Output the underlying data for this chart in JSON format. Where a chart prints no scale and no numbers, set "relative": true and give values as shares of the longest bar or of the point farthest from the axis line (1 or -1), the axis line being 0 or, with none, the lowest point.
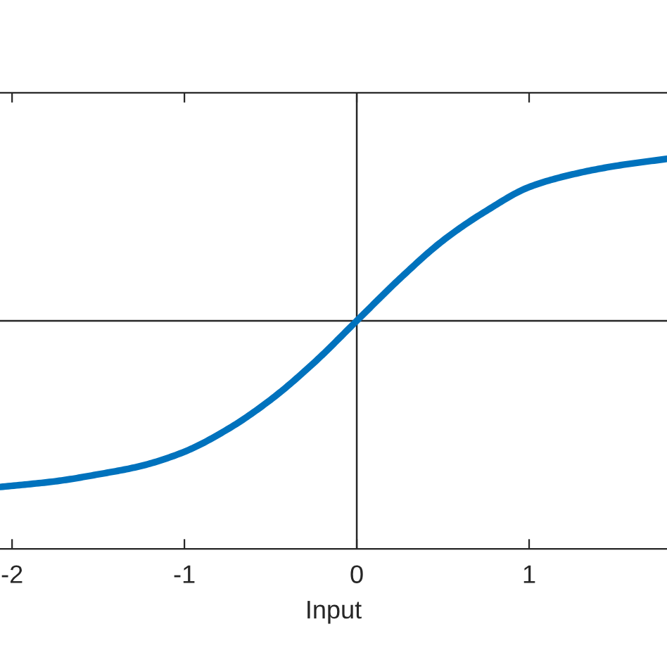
{
  "chart_data": {
    "type": "line",
    "xlabel": "Input",
    "relative": true,
    "x": [
      -2.07,
      -1.75,
      -1.5,
      -1.25,
      -1,
      -0.75,
      -0.5,
      -0.25,
      0,
      0.25,
      0.5,
      0.75,
      1,
      1.25,
      1.5,
      1.8
    ],
    "series": [
      {
        "color": "#0072bd",
        "values": [
          -1,
          -0.966,
          -0.924,
          -0.873,
          -0.788,
          -0.653,
          -0.475,
          -0.254,
          0,
          0.254,
          0.483,
          0.661,
          0.805,
          0.881,
          0.932,
          0.975
        ]
      }
    ],
    "xlim": [
      -2.07,
      1.8
    ],
    "xticks": [
      -2,
      -1,
      0,
      1
    ],
    "ref_lines": [
      {
        "axis": "x",
        "value": 0,
        "color": "#262626"
      }
    ],
    "marker": "none",
    "line_style": "solid"
  }
}
